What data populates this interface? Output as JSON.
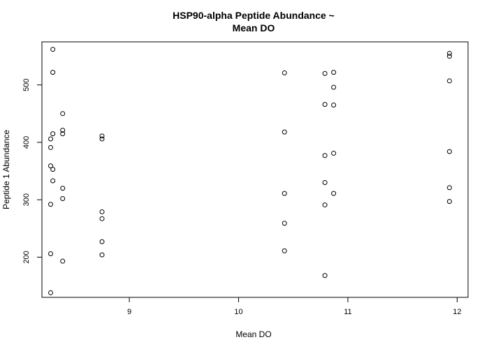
{
  "chart_data": {
    "type": "scatter",
    "title_lines": [
      "HSP90-alpha Peptide Abundance ~",
      "Mean DO"
    ],
    "xlabel": "Mean DO",
    "ylabel": "Peptide 1 Abundance",
    "xlim": [
      8.2,
      12.1
    ],
    "ylim": [
      130,
      575
    ],
    "xticks": [
      9,
      10,
      11,
      12
    ],
    "yticks": [
      200,
      300,
      400,
      500
    ],
    "grid": false,
    "legend": "none",
    "point_style": "open-circle",
    "colors": {
      "points": "#000000",
      "axis": "#000000",
      "background": "#ffffff"
    },
    "points": [
      {
        "x": 8.3,
        "y": 562
      },
      {
        "x": 8.3,
        "y": 522
      },
      {
        "x": 8.3,
        "y": 415
      },
      {
        "x": 8.28,
        "y": 406
      },
      {
        "x": 8.28,
        "y": 391
      },
      {
        "x": 8.28,
        "y": 359
      },
      {
        "x": 8.3,
        "y": 353
      },
      {
        "x": 8.3,
        "y": 333
      },
      {
        "x": 8.28,
        "y": 292
      },
      {
        "x": 8.28,
        "y": 206
      },
      {
        "x": 8.28,
        "y": 138
      },
      {
        "x": 8.39,
        "y": 450
      },
      {
        "x": 8.39,
        "y": 421
      },
      {
        "x": 8.39,
        "y": 415
      },
      {
        "x": 8.39,
        "y": 320
      },
      {
        "x": 8.39,
        "y": 302
      },
      {
        "x": 8.39,
        "y": 193
      },
      {
        "x": 8.75,
        "y": 411
      },
      {
        "x": 8.75,
        "y": 406
      },
      {
        "x": 8.75,
        "y": 279
      },
      {
        "x": 8.75,
        "y": 267
      },
      {
        "x": 8.75,
        "y": 227
      },
      {
        "x": 8.75,
        "y": 204
      },
      {
        "x": 10.42,
        "y": 521
      },
      {
        "x": 10.42,
        "y": 418
      },
      {
        "x": 10.42,
        "y": 311
      },
      {
        "x": 10.42,
        "y": 259
      },
      {
        "x": 10.42,
        "y": 211
      },
      {
        "x": 10.79,
        "y": 520
      },
      {
        "x": 10.79,
        "y": 466
      },
      {
        "x": 10.79,
        "y": 377
      },
      {
        "x": 10.79,
        "y": 330
      },
      {
        "x": 10.79,
        "y": 291
      },
      {
        "x": 10.79,
        "y": 168
      },
      {
        "x": 10.87,
        "y": 522
      },
      {
        "x": 10.87,
        "y": 496
      },
      {
        "x": 10.87,
        "y": 465
      },
      {
        "x": 10.87,
        "y": 381
      },
      {
        "x": 10.87,
        "y": 311
      },
      {
        "x": 11.93,
        "y": 555
      },
      {
        "x": 11.93,
        "y": 550
      },
      {
        "x": 11.93,
        "y": 507
      },
      {
        "x": 11.93,
        "y": 384
      },
      {
        "x": 11.93,
        "y": 321
      },
      {
        "x": 11.93,
        "y": 297
      }
    ]
  }
}
